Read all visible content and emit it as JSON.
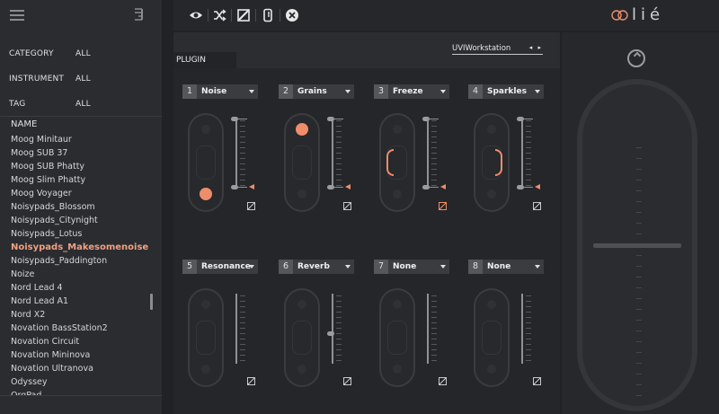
{
  "sidebar": {
    "filters": [
      {
        "label": "CATEGORY",
        "value": "ALL"
      },
      {
        "label": "INSTRUMENT",
        "value": "ALL"
      },
      {
        "label": "TAG",
        "value": "ALL"
      }
    ],
    "list_header": "NAME",
    "items": [
      "Moog Minitaur",
      "Moog SUB 37",
      "Moog SUB Phatty",
      "Moog Slim Phatty",
      "Moog Voyager",
      "Noisypads_Blossom",
      "Noisypads_Citynight",
      "Noisypads_Lotus",
      "Noisypads_Makesomenoise",
      "Noisypads_Paddington",
      "Noize",
      "Nord Lead 4",
      "Nord Lead A1",
      "Nord X2",
      "Novation BassStation2",
      "Novation Circuit",
      "Novation Mininova",
      "Novation Ultranova",
      "Odyssey",
      "OrgPad"
    ],
    "active_index": 8
  },
  "toolbar": {
    "icons": [
      "eye-icon",
      "shuffle-icon",
      "edit-icon",
      "phone-icon",
      "close-icon"
    ]
  },
  "logo": {
    "text": "lié"
  },
  "plugin": {
    "tab_label": "PLUGIN",
    "selected": "UVIWorkstation",
    "arrows": "◂ ▸"
  },
  "slots": [
    {
      "num": "1",
      "name": "Noise",
      "mode": "dot",
      "dot": "bottom",
      "edit_active": false,
      "marker": true
    },
    {
      "num": "2",
      "name": "Grains",
      "mode": "dot",
      "dot": "top",
      "edit_active": false,
      "marker": true
    },
    {
      "num": "3",
      "name": "Freeze",
      "mode": "left-bracket",
      "edit_active": true,
      "marker": true
    },
    {
      "num": "4",
      "name": "Sparkles",
      "mode": "right-bracket",
      "edit_active": false,
      "marker": true
    },
    {
      "num": "5",
      "name": "Resonance",
      "mode": "empty",
      "edit_active": false,
      "marker": false
    },
    {
      "num": "6",
      "name": "Reverb",
      "mode": "empty",
      "edit_active": false,
      "marker": false,
      "mid_knob": true
    },
    {
      "num": "7",
      "name": "None",
      "mode": "empty",
      "edit_active": false,
      "marker": false
    },
    {
      "num": "8",
      "name": "None",
      "mode": "empty",
      "edit_active": false,
      "marker": false
    }
  ],
  "colors": {
    "accent": "#ef8d6a",
    "background": "#202226"
  }
}
